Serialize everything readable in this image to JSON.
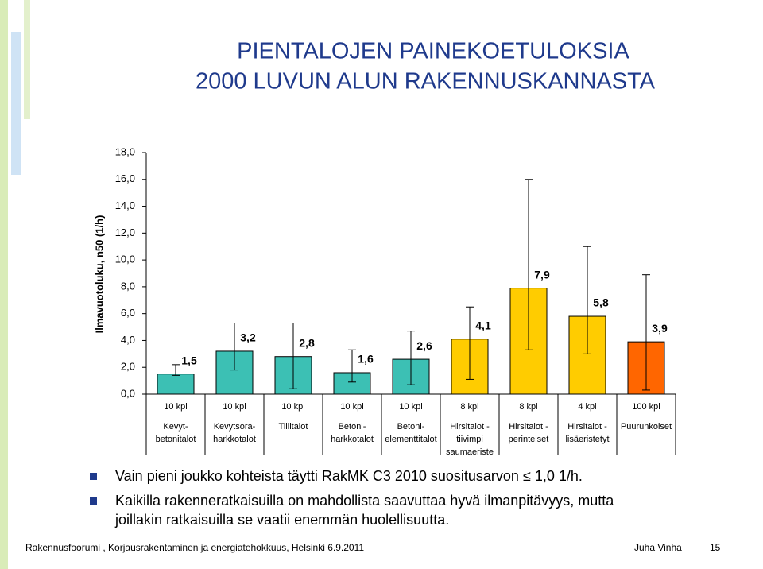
{
  "title_lines": [
    "PIENTALOJEN PAINEKOETULOKSIA",
    "2000 LUVUN ALUN RAKENNUSKANNASTA"
  ],
  "chart_data": {
    "type": "bar",
    "y_label": "Ilmavuotoluku, n50 (1/h)",
    "categories": [
      [
        "Kevyt-",
        "betonitalot"
      ],
      [
        "Kevytsora-",
        "harkkotalot"
      ],
      [
        "Tiilitalot"
      ],
      [
        "Betoni-",
        "harkkotalot"
      ],
      [
        "Betoni-",
        "elementtitalot"
      ],
      [
        "Hirsitalot -",
        "tiivimpi",
        "saumaeriste"
      ],
      [
        "Hirsitalot -",
        "perinteiset"
      ],
      [
        "Hirsitalot -",
        "lisäeristetyt"
      ],
      [
        "Puurunkoiset"
      ]
    ],
    "counts": [
      "10 kpl",
      "10 kpl",
      "10 kpl",
      "10 kpl",
      "10 kpl",
      "8 kpl",
      "8 kpl",
      "4 kpl",
      "100 kpl"
    ],
    "values": [
      1.5,
      3.2,
      2.8,
      1.6,
      2.6,
      4.1,
      7.9,
      5.8,
      3.9
    ],
    "value_labels": [
      "1,5",
      "3,2",
      "2,8",
      "1,6",
      "2,6",
      "4,1",
      "7,9",
      "5,8",
      "3,9"
    ],
    "error_low": [
      1.4,
      1.8,
      0.4,
      0.9,
      0.7,
      1.1,
      3.3,
      3.0,
      0.3
    ],
    "error_high": [
      2.2,
      5.3,
      5.3,
      3.3,
      4.7,
      6.5,
      16.0,
      11.0,
      8.9
    ],
    "colors": [
      "#3cc0b4",
      "#3cc0b4",
      "#3cc0b4",
      "#3cc0b4",
      "#3cc0b4",
      "#ffcc00",
      "#ffcc00",
      "#ffcc00",
      "#ff6600"
    ],
    "ylim": [
      0,
      18
    ],
    "yticks": [
      {
        "value": 0,
        "label": "0,0"
      },
      {
        "value": 2,
        "label": "2,0"
      },
      {
        "value": 4,
        "label": "4,0"
      },
      {
        "value": 6,
        "label": "6,0"
      },
      {
        "value": 8,
        "label": "8,0"
      },
      {
        "value": 10,
        "label": "10,0"
      },
      {
        "value": 12,
        "label": "12,0"
      },
      {
        "value": 14,
        "label": "14,0"
      },
      {
        "value": 16,
        "label": "16,0"
      },
      {
        "value": 18,
        "label": "18,0"
      }
    ],
    "grid": false
  },
  "bullets": [
    "Vain pieni joukko kohteista täytti RakMK C3 2010 suositusarvon ≤ 1,0 1/h.",
    "Kaikilla rakenneratkaisuilla on mahdollista saavuttaa hyvä ilmanpitävyys, mutta",
    "joillakin ratkaisuilla se vaatii enemmän huolellisuutta."
  ],
  "footer": {
    "left": "Rakennusfoorumi , Korjausrakentaminen ja energiatehokkuus, Helsinki 6.9.2011",
    "author": "Juha Vinha",
    "page": "15"
  }
}
